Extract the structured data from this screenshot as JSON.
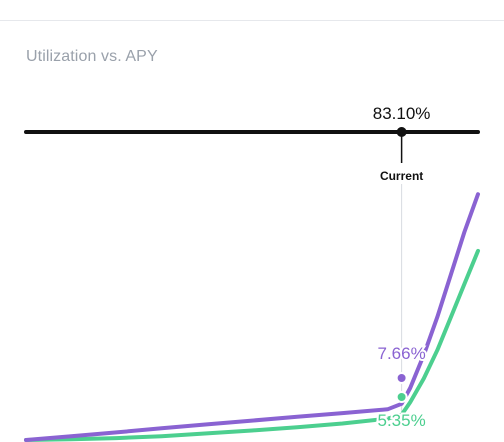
{
  "header": {
    "title": "Utilization vs. APY"
  },
  "colors": {
    "borrow": "#8a63d2",
    "supply": "#4ccf8f",
    "axis": "#111111",
    "marker_line": "#d7dbe0"
  },
  "chart_data": {
    "type": "line",
    "title": "Utilization vs. APY",
    "xlabel": "",
    "ylabel": "",
    "xlim": [
      0,
      100
    ],
    "ylim": [
      0,
      55
    ],
    "grid": false,
    "legend": "none",
    "current": {
      "utilization": 83.1,
      "utilization_label": "83.10%",
      "label": "Current"
    },
    "series": [
      {
        "key": "borrow",
        "values_x": [
          0,
          10,
          20,
          30,
          40,
          50,
          60,
          70,
          80,
          83.1,
          85,
          88,
          91,
          94,
          97,
          100
        ],
        "values_y": [
          0,
          0.8,
          1.6,
          2.5,
          3.3,
          4.1,
          4.9,
          5.7,
          6.5,
          7.66,
          11,
          18,
          26,
          35,
          44,
          52
        ],
        "current_label": "7.66%"
      },
      {
        "key": "supply",
        "values_x": [
          0,
          10,
          20,
          30,
          40,
          50,
          60,
          70,
          80,
          83.1,
          85,
          88,
          91,
          94,
          97,
          100
        ],
        "values_y": [
          0,
          0.15,
          0.4,
          0.8,
          1.4,
          2.0,
          2.7,
          3.5,
          4.5,
          5.35,
          8.0,
          13.0,
          19.0,
          26.0,
          33.0,
          40.0
        ],
        "current_label": "5.35%"
      }
    ]
  }
}
